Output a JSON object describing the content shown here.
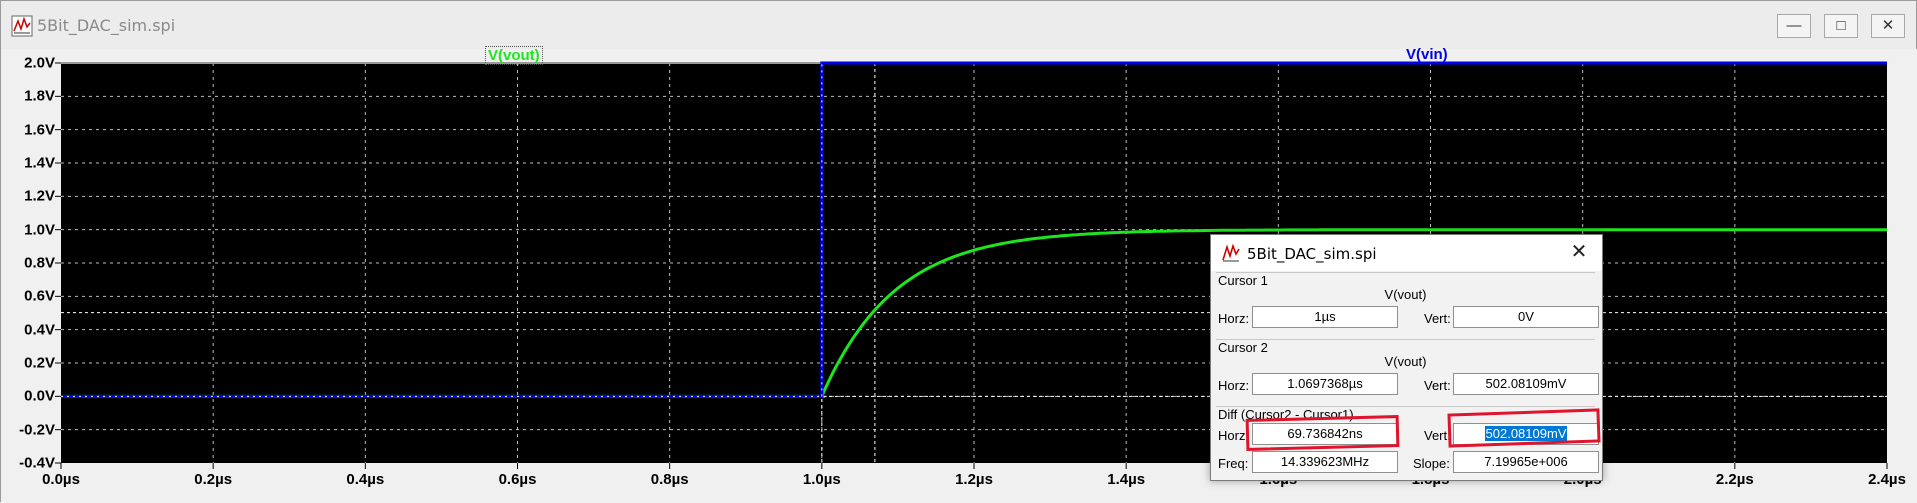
{
  "window": {
    "title": "5Bit_DAC_sim.spi",
    "minimize_label": "—",
    "maximize_label": "□",
    "close_label": "✕"
  },
  "plot": {
    "background": "#000000",
    "grid_color": "#bdbdbd",
    "traces": [
      {
        "name": "V(vout)",
        "color": "#1ee61e"
      },
      {
        "name": "V(vin)",
        "color": "#0000e8"
      }
    ],
    "y_tick_labels": [
      "2.0V",
      "1.8V",
      "1.6V",
      "1.4V",
      "1.2V",
      "1.0V",
      "0.8V",
      "0.6V",
      "0.4V",
      "0.2V",
      "0.0V",
      "-0.2V",
      "-0.4V"
    ],
    "x_tick_labels": [
      "0.0µs",
      "0.2µs",
      "0.4µs",
      "0.6µs",
      "0.8µs",
      "1.0µs",
      "1.2µs",
      "1.4µs",
      "1.6µs",
      "1.8µs",
      "2.0µs",
      "2.2µs",
      "2.4µs"
    ]
  },
  "chart_data": {
    "type": "line",
    "xlabel": "",
    "ylabel": "",
    "xlim": [
      0,
      2.4
    ],
    "ylim": [
      -0.4,
      2.0
    ],
    "x_unit": "µs",
    "y_unit": "V",
    "grid": true,
    "series": [
      {
        "name": "V(vout)",
        "note_shape": "rc-step",
        "x": [
          0,
          1.0,
          1.05,
          1.1,
          1.15,
          1.2,
          1.3,
          1.4,
          1.6,
          2.0,
          2.4
        ],
        "values": [
          0,
          0,
          0.52,
          0.77,
          0.89,
          0.95,
          0.99,
          1.0,
          1.0,
          1.0,
          1.0
        ]
      },
      {
        "name": "V(vin)",
        "x": [
          0,
          1.0,
          1.0,
          2.4
        ],
        "values": [
          0,
          0,
          2.0,
          2.0
        ]
      }
    ],
    "cursors": [
      {
        "name": "Cursor 1",
        "x": 1.0,
        "y": 0.0
      },
      {
        "name": "Cursor 2",
        "x": 1.0697368,
        "y": 0.50208109
      }
    ]
  },
  "dialog": {
    "title": "5Bit_DAC_sim.spi",
    "close_label": "✕",
    "cursor1": {
      "title": "Cursor 1",
      "trace": "V(vout)",
      "horz_label": "Horz:",
      "horz_value": "1µs",
      "vert_label": "Vert:",
      "vert_value": "0V"
    },
    "cursor2": {
      "title": "Cursor 2",
      "trace": "V(vout)",
      "horz_label": "Horz:",
      "horz_value": "1.0697368µs",
      "vert_label": "Vert:",
      "vert_value": "502.08109mV"
    },
    "diff": {
      "title": "Diff (Cursor2 - Cursor1)",
      "horz_label": "Horz:",
      "horz_value": "69.736842ns",
      "vert_label": "Vert:",
      "vert_value": "502.08109mV",
      "freq_label": "Freq:",
      "freq_value": "14.339623MHz",
      "slope_label": "Slope:",
      "slope_value": "7.19965e+006"
    }
  }
}
